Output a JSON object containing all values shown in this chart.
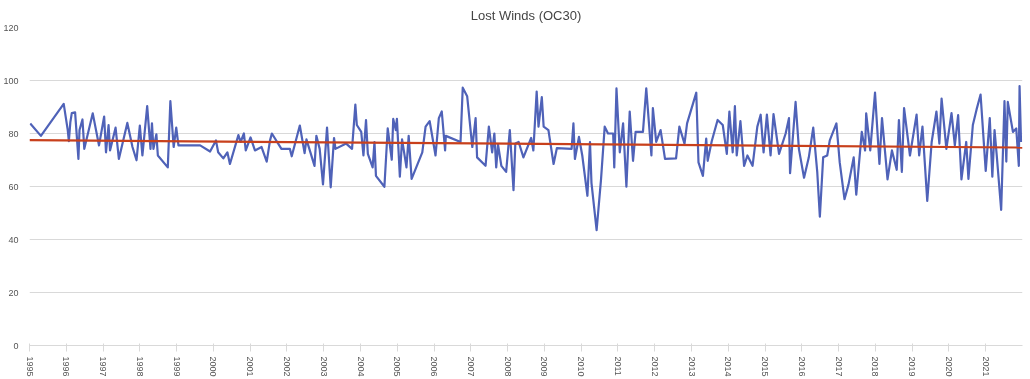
{
  "chart_data": {
    "type": "line",
    "title": "Lost Winds (OC30)",
    "xlim": [
      1995,
      2022
    ],
    "xticks": [
      1995,
      1996,
      1997,
      1998,
      1999,
      2000,
      2001,
      2002,
      2003,
      2004,
      2005,
      2006,
      2007,
      2008,
      2009,
      2010,
      2011,
      2012,
      2013,
      2014,
      2015,
      2016,
      2017,
      2018,
      2019,
      2020,
      2021
    ],
    "ylim": [
      0,
      120
    ],
    "yticks": [
      0,
      20,
      40,
      60,
      80,
      100,
      120
    ],
    "grid": "y",
    "series": [
      {
        "color": "#4f62b8",
        "x": [
          1995.02,
          1995.31,
          1995.93,
          1996.04,
          1996.07,
          1996.11,
          1996.15,
          1996.24,
          1996.33,
          1996.36,
          1996.44,
          1996.49,
          1996.72,
          1996.89,
          1997.03,
          1997.08,
          1997.15,
          1997.19,
          1997.34,
          1997.43,
          1997.66,
          1997.8,
          1997.91,
          1998.0,
          1998.07,
          1998.2,
          1998.29,
          1998.33,
          1998.37,
          1998.45,
          1998.49,
          1998.76,
          1998.83,
          1998.92,
          1998.99,
          1999.05,
          1999.64,
          1999.91,
          2000.07,
          2000.13,
          2000.27,
          2000.38,
          2000.45,
          2000.68,
          2000.74,
          2000.83,
          2000.88,
          2001.01,
          2001.13,
          2001.31,
          2001.45,
          2001.54,
          2001.59,
          2001.85,
          2002.08,
          2002.13,
          2002.35,
          2002.48,
          2002.53,
          2002.75,
          2002.8,
          2002.89,
          2002.98,
          2003.09,
          2003.19,
          2003.28,
          2003.32,
          2003.61,
          2003.77,
          2003.86,
          2003.9,
          2004.02,
          2004.08,
          2004.15,
          2004.2,
          2004.33,
          2004.38,
          2004.42,
          2004.65,
          2004.74,
          2004.85,
          2004.89,
          2004.96,
          2004.99,
          2005.07,
          2005.13,
          2005.25,
          2005.31,
          2005.39,
          2005.68,
          2005.77,
          2005.88,
          2006.04,
          2006.13,
          2006.21,
          2006.3,
          2006.32,
          2006.72,
          2006.78,
          2006.9,
          2007.04,
          2007.13,
          2007.17,
          2007.4,
          2007.49,
          2007.58,
          2007.64,
          2007.69,
          2007.74,
          2007.83,
          2007.96,
          2008.06,
          2008.16,
          2008.21,
          2008.3,
          2008.43,
          2008.64,
          2008.7,
          2008.79,
          2008.84,
          2008.93,
          2008.98,
          2009.11,
          2009.25,
          2009.34,
          2009.74,
          2009.79,
          2009.83,
          2009.94,
          2010.03,
          2010.17,
          2010.24,
          2010.28,
          2010.42,
          2010.54,
          2010.64,
          2010.73,
          2010.87,
          2010.9,
          2010.96,
          2011.05,
          2011.14,
          2011.23,
          2011.32,
          2011.41,
          2011.48,
          2011.68,
          2011.77,
          2011.91,
          2011.95,
          2012.04,
          2012.16,
          2012.28,
          2012.58,
          2012.67,
          2012.81,
          2012.88,
          2013.13,
          2013.19,
          2013.31,
          2013.4,
          2013.44,
          2013.55,
          2013.71,
          2013.85,
          2013.96,
          2014.03,
          2014.12,
          2014.18,
          2014.23,
          2014.33,
          2014.43,
          2014.52,
          2014.66,
          2014.79,
          2014.88,
          2014.96,
          2015.05,
          2015.15,
          2015.23,
          2015.38,
          2015.56,
          2015.65,
          2015.68,
          2015.83,
          2015.92,
          2016.06,
          2016.19,
          2016.31,
          2016.42,
          2016.49,
          2016.58,
          2016.69,
          2016.76,
          2016.94,
          2017.03,
          2017.16,
          2017.27,
          2017.41,
          2017.48,
          2017.63,
          2017.72,
          2017.75,
          2017.86,
          2017.99,
          2018.11,
          2018.18,
          2018.33,
          2018.45,
          2018.58,
          2018.64,
          2018.72,
          2018.78,
          2018.94,
          2019.12,
          2019.19,
          2019.28,
          2019.41,
          2019.53,
          2019.66,
          2019.74,
          2019.8,
          2019.93,
          2020.07,
          2020.16,
          2020.25,
          2020.34,
          2020.47,
          2020.53,
          2020.65,
          2020.75,
          2020.86,
          2021.0,
          2021.11,
          2021.18,
          2021.24,
          2021.3,
          2021.42,
          2021.51,
          2021.56,
          2021.6,
          2021.74,
          2021.83,
          2021.9,
          2021.92,
          2021.96
        ],
        "values": [
          83.8,
          79.1,
          91.2,
          81.3,
          77.1,
          84.2,
          87.7,
          88,
          70.4,
          81.3,
          85.3,
          74.2,
          87.6,
          75.5,
          86.4,
          72.9,
          83.2,
          73.6,
          82.2,
          70.4,
          84,
          74.9,
          69.9,
          83,
          71.7,
          90.3,
          74.2,
          83.8,
          74.2,
          79.7,
          71.7,
          67.2,
          92.2,
          74.9,
          82.2,
          75.5,
          75.5,
          73.2,
          77.4,
          72.9,
          70.6,
          72.9,
          68.5,
          79.4,
          76.8,
          80,
          73.6,
          78.5,
          73.6,
          74.9,
          69.4,
          77.4,
          80,
          74.2,
          74.2,
          71.4,
          83,
          72.6,
          77.8,
          67.8,
          79.1,
          74.2,
          60.8,
          82.2,
          59.7,
          78.3,
          74.2,
          76.2,
          74.2,
          90.9,
          83.2,
          80.6,
          71.7,
          85.1,
          72.3,
          67.2,
          76.8,
          64,
          59.9,
          81.9,
          70.1,
          85.5,
          81.3,
          85.5,
          63.7,
          77.8,
          67.2,
          79.1,
          62.9,
          72.9,
          82.6,
          84.7,
          71.7,
          85.8,
          88.3,
          73.6,
          79.1,
          76.8,
          97.3,
          94.1,
          74.9,
          85.8,
          71,
          67.8,
          82.6,
          72.9,
          80,
          67.2,
          75.8,
          67.8,
          65.5,
          81.3,
          58.6,
          76.2,
          76.8,
          71,
          78.3,
          73.6,
          95.8,
          82.6,
          93.7,
          82.6,
          81.3,
          68.5,
          74.5,
          74.2,
          83.8,
          70.4,
          78.7,
          71.7,
          56.5,
          76.8,
          61.4,
          43.5,
          62.7,
          82.6,
          80,
          80,
          67.2,
          97,
          72.9,
          83.8,
          59.9,
          88.3,
          69.7,
          80.6,
          80.6,
          97,
          71.7,
          89.6,
          76.8,
          81.3,
          70.4,
          70.6,
          82.6,
          76.2,
          83.8,
          95.4,
          69.1,
          64,
          78.1,
          69.7,
          77.1,
          85.1,
          83.2,
          72.3,
          88.3,
          72.9,
          90.3,
          71.7,
          84.7,
          67.8,
          71.7,
          67.8,
          82.6,
          87.1,
          72.9,
          87.1,
          71.7,
          87.3,
          72.3,
          80,
          85.8,
          65,
          91.9,
          74.2,
          63.3,
          71,
          82.2,
          65.3,
          48.6,
          71,
          71.7,
          77.4,
          83.8,
          69.1,
          55.2,
          60.8,
          71,
          56.9,
          80.6,
          73.6,
          87.6,
          73.6,
          95.4,
          68.5,
          85.8,
          62.7,
          73.6,
          66.3,
          85.1,
          65.5,
          89.6,
          71.7,
          87.1,
          71.7,
          82.6,
          54.6,
          76.8,
          88.3,
          76.2,
          93.2,
          74.2,
          87.7,
          75.5,
          86.9,
          62.7,
          76.8,
          62.9,
          83.2,
          89,
          94.7,
          65.9,
          85.8,
          63.7,
          81.3,
          71.7,
          51.2,
          92.2,
          69.4,
          91.9,
          80.6,
          81.9,
          67.8,
          97.9,
          76.8
        ]
      },
      {
        "color": "#c8401c",
        "x": [
          1995,
          2022
        ],
        "values": [
          77.5,
          74.7
        ]
      }
    ]
  }
}
